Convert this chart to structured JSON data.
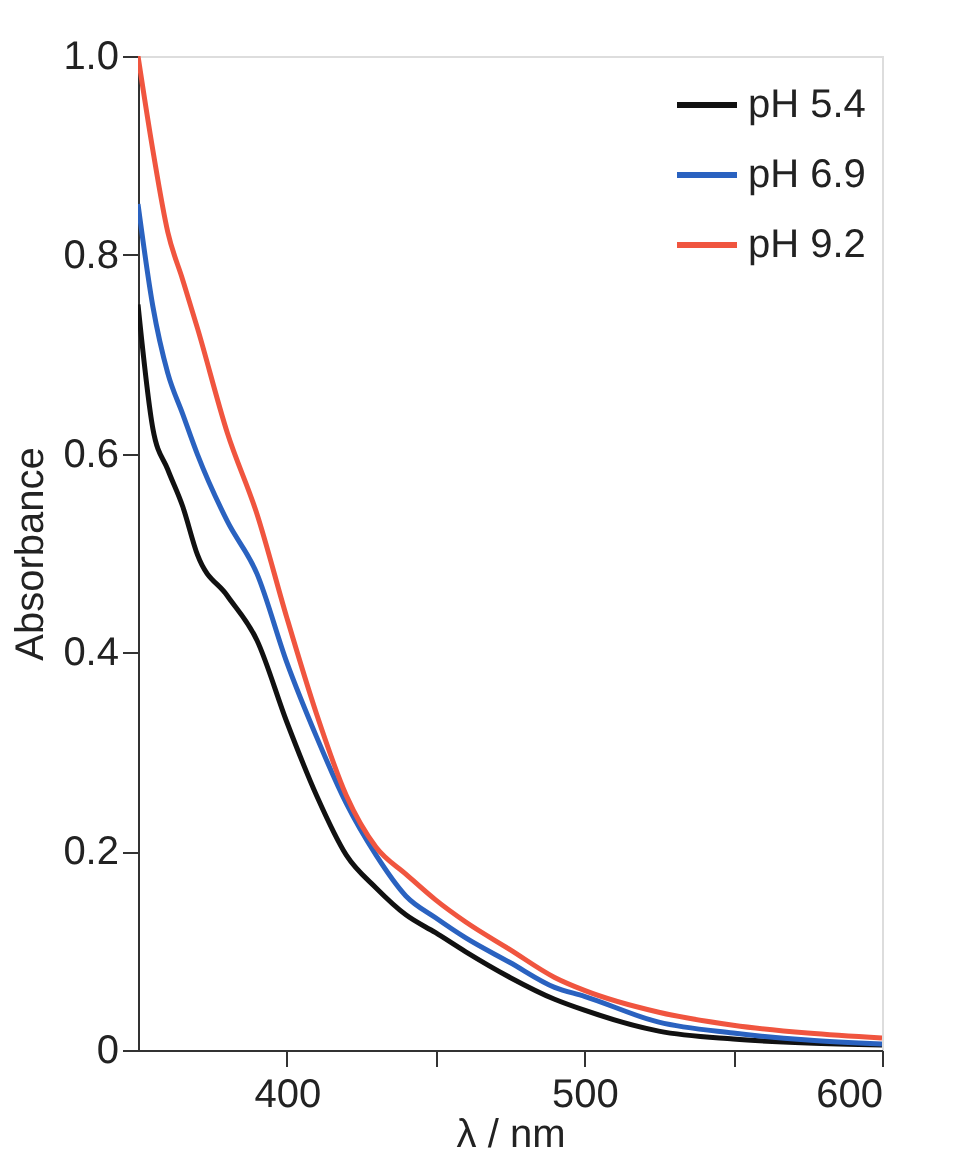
{
  "chart_data": {
    "type": "line",
    "xlabel": "λ / nm",
    "ylabel": "Absorbance",
    "xlim": [
      350,
      600
    ],
    "ylim": [
      0,
      1.0
    ],
    "xticks": [
      400,
      {
        "value": 450,
        "label": null
      },
      500,
      {
        "value": 550,
        "label": null
      },
      600
    ],
    "yticks": [
      0,
      0.2,
      0.4,
      0.6,
      0.8,
      {
        "value": 1.0,
        "label": "1.0"
      }
    ],
    "grid": false,
    "legend": "top right",
    "marker": "none",
    "line_style": "solid",
    "x": [
      350,
      355,
      360,
      365,
      370,
      380,
      390,
      400,
      410,
      420,
      430,
      440,
      450,
      460,
      475,
      490,
      500,
      525,
      550,
      575,
      600
    ],
    "series": [
      {
        "name": "pH 5.4",
        "color": "#111111",
        "values": [
          0.75,
          0.625,
          0.584,
          0.547,
          0.498,
          0.457,
          0.412,
          0.33,
          0.256,
          0.196,
          0.163,
          0.136,
          0.118,
          0.099,
          0.073,
          0.051,
          0.04,
          0.019,
          0.011,
          0.007,
          0.005
        ]
      },
      {
        "name": "pH 6.9",
        "color": "#2a62c0",
        "values": [
          0.851,
          0.748,
          0.681,
          0.64,
          0.599,
          0.532,
          0.479,
          0.39,
          0.315,
          0.248,
          0.196,
          0.155,
          0.133,
          0.113,
          0.088,
          0.063,
          0.054,
          0.028,
          0.017,
          0.01,
          0.006
        ]
      },
      {
        "name": "pH 9.2",
        "color": "#f0553f",
        "values": [
          1.0,
          0.905,
          0.823,
          0.775,
          0.726,
          0.621,
          0.539,
          0.435,
          0.338,
          0.256,
          0.204,
          0.177,
          0.151,
          0.129,
          0.101,
          0.073,
          0.06,
          0.038,
          0.025,
          0.017,
          0.012
        ]
      }
    ]
  }
}
